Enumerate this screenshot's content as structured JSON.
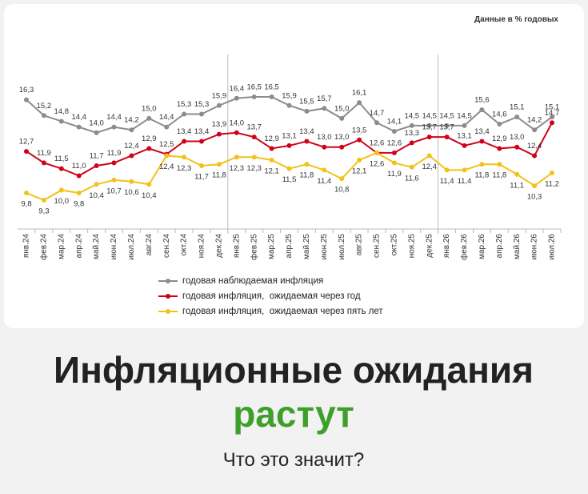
{
  "chart_data": {
    "type": "line",
    "note": "Данные в % годовых",
    "categories": [
      "янв.24",
      "фев.24",
      "мар.24",
      "апр.24",
      "май.24",
      "июн.24",
      "июл.24",
      "авг.24",
      "сен.24",
      "окт.24",
      "ноя.24",
      "дек.24",
      "янв.25",
      "фев.25",
      "мар.25",
      "апр.25",
      "май.25",
      "июн.25",
      "июл.25",
      "авг.25",
      "сен.25",
      "окт.25",
      "ноя.25",
      "дек.25",
      "янв.26",
      "фев.26",
      "мар.26",
      "апр.26",
      "май.26",
      "июн.26",
      "июл.26"
    ],
    "series": [
      {
        "name": "годовая наблюдаемая инфляция",
        "color": "#8c8c8c",
        "values": [
          16.3,
          15.2,
          14.8,
          14.4,
          14.0,
          14.4,
          14.2,
          15.0,
          14.4,
          15.3,
          15.3,
          15.9,
          16.4,
          16.5,
          16.5,
          15.9,
          15.5,
          15.7,
          15.0,
          16.1,
          14.7,
          14.1,
          14.5,
          14.5,
          14.5,
          14.5,
          15.6,
          14.6,
          15.1,
          14.2,
          15.1
        ],
        "value_labels": [
          "16,3",
          "15,2",
          "14,8",
          "14,4",
          "14,0",
          "14,4",
          "14,2",
          "15,0",
          "14,4",
          "15,3",
          "15,3",
          "15,9",
          "16,4",
          "16,5",
          "16,5",
          "15,9",
          "15,5",
          "15,7",
          "15,0",
          "16,1",
          "14,7",
          "14,1",
          "14,5",
          "14,5",
          "14,5",
          "14,5",
          "15,6",
          "14,6",
          "15,1",
          "14,2",
          "15,1"
        ]
      },
      {
        "name": "годовая инфляция,  ожидаемая через год",
        "color": "#d0021b",
        "values": [
          12.7,
          11.9,
          11.5,
          11.0,
          11.7,
          11.9,
          12.4,
          12.9,
          12.5,
          13.4,
          13.4,
          13.9,
          14.0,
          13.7,
          12.9,
          13.1,
          13.4,
          13.0,
          13.0,
          13.5,
          12.6,
          12.6,
          13.3,
          13.7,
          13.7,
          13.1,
          13.4,
          12.9,
          13.0,
          12.4,
          14.7
        ],
        "value_labels": [
          "12,7",
          "11,9",
          "11,5",
          "11,0",
          "11,7",
          "11,9",
          "12,4",
          "12,9",
          "12,5",
          "13,4",
          "13,4",
          "13,9",
          "14,0",
          "13,7",
          "12,9",
          "13,1",
          "13,4",
          "13,0",
          "13,0",
          "13,5",
          "12,6",
          "12,6",
          "13,3",
          "13,7",
          "13,7",
          "13,1",
          "13,4",
          "12,9",
          "13,0",
          "12,4",
          "14,7"
        ]
      },
      {
        "name": "годовая инфляция,  ожидаемая через пять лет",
        "color": "#f2c21b",
        "values": [
          9.8,
          9.3,
          10.0,
          9.8,
          10.4,
          10.7,
          10.6,
          10.4,
          12.4,
          12.3,
          11.7,
          11.8,
          12.3,
          12.3,
          12.1,
          11.5,
          11.8,
          11.4,
          10.8,
          12.1,
          12.6,
          11.9,
          11.6,
          12.4,
          11.4,
          11.4,
          11.8,
          11.8,
          11.1,
          10.3,
          11.2
        ],
        "value_labels": [
          "9,8",
          "9,3",
          "10,0",
          "9,8",
          "10,4",
          "10,7",
          "10,6",
          "10,4",
          "12,4",
          "12,3",
          "11,7",
          "11,8",
          "12,3",
          "12,3",
          "12,1",
          "11,5",
          "11,8",
          "11,4",
          "10,8",
          "12,1",
          "12,6",
          "11,9",
          "11,6",
          "12,4",
          "11,4",
          "11,4",
          "11,8",
          "11,8",
          "11,1",
          "10,3",
          "11,2"
        ]
      }
    ]
  },
  "headline": {
    "line1": "Инфляционные ожидания",
    "line2": "растут",
    "question": "Что это значит?"
  }
}
